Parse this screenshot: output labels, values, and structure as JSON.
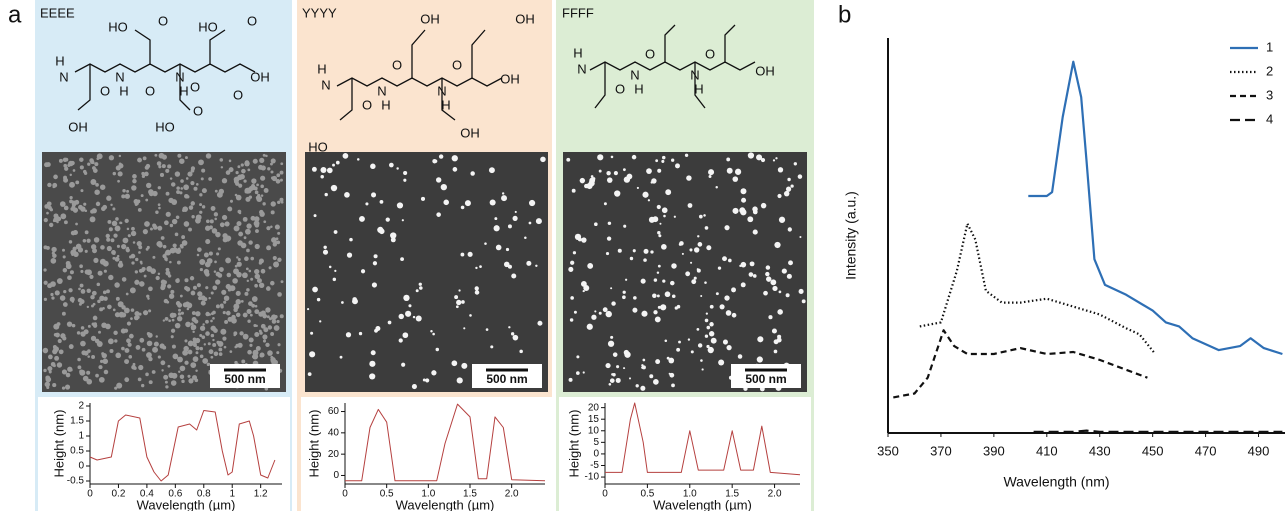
{
  "panel_labels": [
    "a",
    "b"
  ],
  "panels": [
    {
      "name": "EEEE",
      "scale_bar": "500 nm",
      "structure": [
        "HO",
        "O",
        "HO",
        "O",
        "H",
        "N",
        "O",
        "N",
        "H",
        "O",
        "N",
        "H",
        "O",
        "OH",
        "O",
        "OH",
        "HO",
        "O"
      ]
    },
    {
      "name": "YYYY",
      "scale_bar": "500 nm",
      "structure": [
        "OH",
        "OH",
        "H",
        "N",
        "O",
        "N",
        "H",
        "O",
        "N",
        "H",
        "O",
        "OH",
        "HO",
        "OH"
      ]
    },
    {
      "name": "FFFF",
      "scale_bar": "500 nm",
      "structure": [
        "H",
        "N",
        "O",
        "N",
        "H",
        "O",
        "N",
        "H",
        "O",
        "OH"
      ]
    }
  ],
  "chart_data": [
    {
      "type": "line",
      "xlabel": "Wavelength (µm)",
      "ylabel": "Height (nm)",
      "x": [
        0,
        0.05,
        0.15,
        0.2,
        0.25,
        0.35,
        0.4,
        0.45,
        0.5,
        0.55,
        0.62,
        0.7,
        0.75,
        0.8,
        0.88,
        0.93,
        0.97,
        1.0,
        1.05,
        1.12,
        1.15,
        1.2,
        1.25,
        1.3
      ],
      "series": [
        {
          "color": "#b5403f",
          "values": [
            0.3,
            0.2,
            0.3,
            1.5,
            1.7,
            1.6,
            0.3,
            -0.2,
            -0.5,
            -0.3,
            1.3,
            1.4,
            1.2,
            1.85,
            1.8,
            0.5,
            -0.3,
            -0.2,
            1.4,
            1.5,
            1.0,
            -0.3,
            -0.4,
            0.2
          ]
        }
      ],
      "xlim": [
        0,
        1.35
      ],
      "xticks": [
        0,
        0.2,
        0.4,
        0.6,
        0.8,
        1,
        1.2
      ],
      "ylim": [
        -0.6,
        2.1
      ],
      "yticks": [
        -0.5,
        0,
        0.5,
        1,
        1.5,
        2
      ]
    },
    {
      "type": "line",
      "xlabel": "Wavelength (µm)",
      "ylabel": "Height (nm)",
      "x": [
        0,
        0.2,
        0.3,
        0.4,
        0.5,
        0.6,
        1.1,
        1.2,
        1.35,
        1.5,
        1.6,
        1.7,
        1.8,
        1.9,
        2.0,
        2.4
      ],
      "series": [
        {
          "color": "#b5403f",
          "values": [
            -5,
            -5,
            45,
            62,
            50,
            -5,
            -5,
            30,
            67,
            55,
            -3,
            -3,
            55,
            45,
            -4,
            -5
          ]
        }
      ],
      "xlim": [
        0,
        2.4
      ],
      "xticks": [
        0,
        0.5,
        {
          "value": 1,
          "label": "1.0"
        },
        1.5,
        {
          "value": 2,
          "label": "2.0"
        }
      ],
      "ylim": [
        -8,
        68
      ],
      "yticks": [
        0,
        20,
        40,
        60
      ]
    },
    {
      "type": "line",
      "xlabel": "Wavelength (µm)",
      "ylabel": "Height (nm)",
      "x": [
        0,
        0.2,
        0.3,
        0.35,
        0.45,
        0.5,
        0.9,
        1.0,
        1.1,
        1.4,
        1.5,
        1.6,
        1.75,
        1.85,
        1.95,
        2.3
      ],
      "series": [
        {
          "color": "#b5403f",
          "values": [
            -8,
            -8,
            15,
            22,
            5,
            -8,
            -8,
            10,
            -7,
            -7,
            10,
            -7,
            -7,
            12,
            -8,
            -9
          ]
        }
      ],
      "xlim": [
        0,
        2.3
      ],
      "xticks": [
        0,
        0.5,
        {
          "value": 1,
          "label": "1.0"
        },
        1.5,
        {
          "value": 2,
          "label": "2.0"
        }
      ],
      "ylim": [
        -13,
        22
      ],
      "yticks": [
        -10,
        -5,
        0,
        5,
        10,
        15,
        20
      ]
    },
    {
      "type": "line",
      "xlabel": "Wavelength (nm)",
      "ylabel": "Intensity (a.u.)",
      "legend": "upper right",
      "xlim": [
        350,
        500
      ],
      "xticks": [
        350,
        370,
        390,
        410,
        430,
        450,
        470,
        490
      ],
      "ylim": [
        0,
        100
      ],
      "series": [
        {
          "name": "1",
          "color": "#2e6fb5",
          "line_style": "solid",
          "x": [
            403,
            410,
            412,
            416,
            420,
            423,
            425,
            428,
            432,
            440,
            450,
            455,
            460,
            465,
            475,
            483,
            487,
            492,
            499
          ],
          "values": [
            60,
            60,
            61,
            80,
            94,
            85,
            69,
            44,
            37.5,
            35,
            31,
            28,
            27,
            24,
            21,
            22,
            24,
            21.5,
            20
          ]
        },
        {
          "name": "2",
          "color": "#111111",
          "line_style": "dotted",
          "x": [
            362,
            370,
            376,
            380,
            383,
            387,
            393,
            400,
            410,
            420,
            430,
            440,
            445,
            451
          ],
          "values": [
            27,
            28,
            41,
            53,
            49,
            36,
            33,
            33,
            34,
            32,
            30,
            26.5,
            25,
            20
          ]
        },
        {
          "name": "3",
          "color": "#111111",
          "line_style": "dashed",
          "x": [
            352,
            360,
            365,
            371,
            375,
            380,
            390,
            400,
            410,
            420,
            430,
            440,
            448
          ],
          "values": [
            9,
            10,
            14,
            26,
            22,
            20,
            20,
            21.5,
            20,
            20.5,
            18.5,
            16,
            14
          ]
        },
        {
          "name": "4",
          "color": "#111111",
          "line_style": "longdash",
          "x": [
            405,
            420,
            425,
            430,
            460,
            499
          ],
          "values": [
            0.3,
            0.3,
            0.6,
            0.3,
            0.3,
            0.3
          ]
        }
      ]
    }
  ]
}
